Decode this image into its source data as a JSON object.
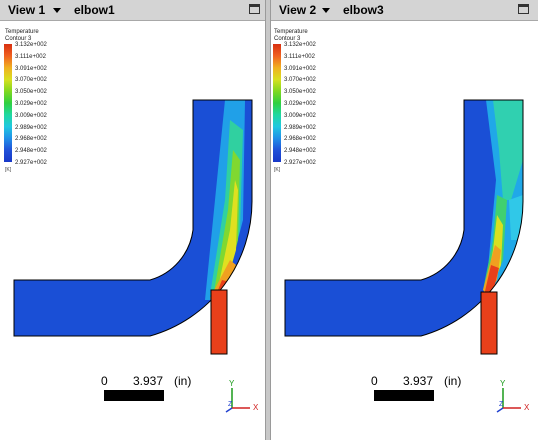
{
  "views": [
    {
      "view_label": "View 1",
      "case_name": "elbow1",
      "legend": {
        "title_line1": "Temperature",
        "title_line2": "Contour 3",
        "ticks": [
          "3.132e+002",
          "3.111e+002",
          "3.091e+002",
          "3.070e+002",
          "3.050e+002",
          "3.029e+002",
          "3.009e+002",
          "2.989e+002",
          "2.968e+002",
          "2.948e+002",
          "2.927e+002"
        ],
        "unit": "[K]"
      },
      "scale": {
        "start": "0",
        "end": "3.937",
        "unit": "(in)"
      },
      "axes": {
        "y": "Y",
        "x": "X",
        "z": "Z"
      }
    },
    {
      "view_label": "View 2",
      "case_name": "elbow3",
      "legend": {
        "title_line1": "Temperature",
        "title_line2": "Contour 3",
        "ticks": [
          "3.132e+002",
          "3.111e+002",
          "3.091e+002",
          "3.070e+002",
          "3.050e+002",
          "3.029e+002",
          "3.009e+002",
          "2.989e+002",
          "2.968e+002",
          "2.948e+002",
          "2.927e+002"
        ],
        "unit": "[K]"
      },
      "scale": {
        "start": "0",
        "end": "3.937",
        "unit": "(in)"
      },
      "axes": {
        "y": "Y",
        "x": "X",
        "z": "Z"
      }
    }
  ],
  "colors": {
    "cold": "#1a4fd6",
    "hot": "#e8401a",
    "legend_gradient": [
      "#d83010",
      "#f06020",
      "#f0b020",
      "#d8e020",
      "#80d820",
      "#30d040",
      "#20d8a0",
      "#20c8e0",
      "#2090e8",
      "#2050d8",
      "#1838c8"
    ]
  }
}
